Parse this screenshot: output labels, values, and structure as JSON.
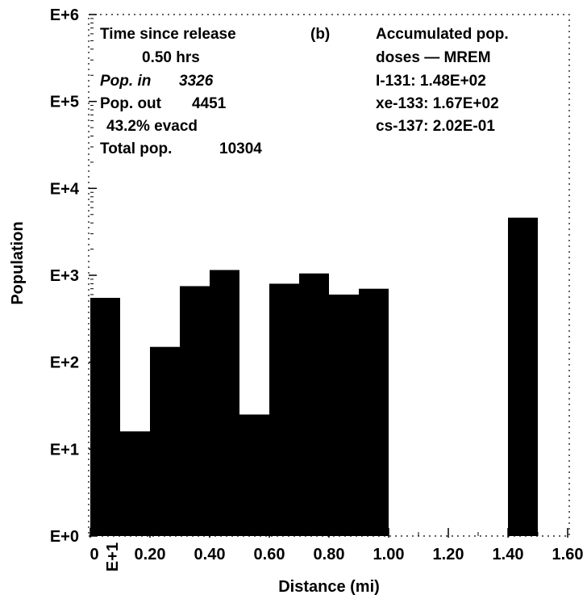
{
  "chart_data": {
    "type": "bar",
    "panel_label": "(b)",
    "xlabel": "Distance (mi)",
    "ylabel": "Population",
    "y_scale": "log",
    "ylim": [
      1,
      1000000
    ],
    "xlim": [
      0,
      1.6
    ],
    "y_tick_labels": [
      "E+0",
      "E+1",
      "E+2",
      "E+3",
      "E+4",
      "E+5",
      "E+6"
    ],
    "x_tick_labels": [
      "0",
      "0.20",
      "0.40",
      "0.60",
      "0.80",
      "1.00",
      "1.20",
      "1.40",
      "1.60"
    ],
    "x_tick_values": [
      0,
      0.2,
      0.4,
      0.6,
      0.8,
      1.0,
      1.2,
      1.4,
      1.6
    ],
    "x_multiplier_label": "E+1",
    "bin_width": 0.1,
    "x": [
      0.05,
      0.15,
      0.25,
      0.35,
      0.45,
      0.55,
      0.65,
      0.75,
      0.85,
      0.95,
      1.05,
      1.15,
      1.25,
      1.35,
      1.45,
      1.55
    ],
    "values": [
      550,
      16,
      150,
      750,
      1150,
      25,
      800,
      1050,
      600,
      700,
      0,
      0,
      0,
      0,
      4600,
      0
    ],
    "grid": false,
    "annotations": {
      "time_label": "Time since release",
      "time_value": "0.50 hrs",
      "pop_in_label": "Pop. in",
      "pop_in_value": "3326",
      "pop_out_label": "Pop. out",
      "pop_out_value": "4451",
      "evacuated": "43.2% evacd",
      "total_label": "Total pop.",
      "total_value": "10304",
      "dose_title_1": "Accumulated pop.",
      "dose_title_2": "doses — MREM",
      "i131": "I-131: 1.48E+02",
      "xe133": "xe-133: 1.67E+02",
      "cs137": "cs-137: 2.02E-01"
    }
  }
}
